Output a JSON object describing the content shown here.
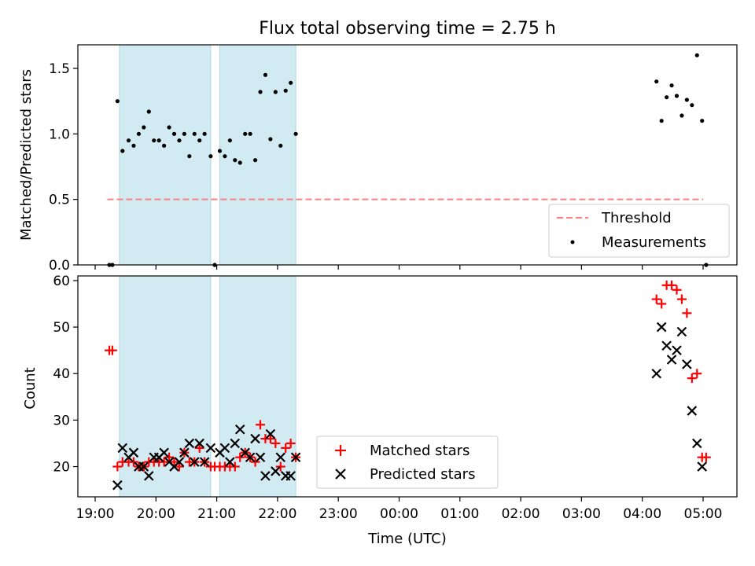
{
  "chart_data": [
    {
      "type": "scatter",
      "title": "Flux total observing time = 2.75 h",
      "xlabel": "",
      "ylabel": "Matched/Predicted stars",
      "ylim": [
        0,
        1.68
      ],
      "yticks": [
        "0.0",
        "0.5",
        "1.0",
        "1.5"
      ],
      "shaded_intervals": [
        [
          "19:24",
          "20:54"
        ],
        [
          "21:03",
          "22:18"
        ]
      ],
      "shade_color": "#add8e6",
      "threshold": {
        "name": "Threshold",
        "y": 0.5,
        "x_range": [
          "19:12",
          "05:00"
        ],
        "color": "#ff7f7f"
      },
      "legend": {
        "entries": [
          "Threshold",
          "Measurements"
        ],
        "loc": "lower right"
      },
      "series": [
        {
          "name": "Measurements",
          "marker": "dot",
          "color": "#000000",
          "points": [
            [
              "19:14",
              0.0
            ],
            [
              "19:17",
              0.0
            ],
            [
              "19:22",
              1.25
            ],
            [
              "19:27",
              0.87
            ],
            [
              "19:33",
              0.95
            ],
            [
              "19:38",
              0.91
            ],
            [
              "19:43",
              1.0
            ],
            [
              "19:48",
              1.05
            ],
            [
              "19:53",
              1.17
            ],
            [
              "19:58",
              0.95
            ],
            [
              "20:03",
              0.95
            ],
            [
              "20:08",
              0.91
            ],
            [
              "20:13",
              1.05
            ],
            [
              "20:18",
              1.0
            ],
            [
              "20:23",
              0.95
            ],
            [
              "20:28",
              1.0
            ],
            [
              "20:33",
              0.83
            ],
            [
              "20:38",
              1.0
            ],
            [
              "20:43",
              0.95
            ],
            [
              "20:48",
              1.0
            ],
            [
              "20:54",
              0.83
            ],
            [
              "20:58",
              0.0
            ],
            [
              "21:03",
              0.87
            ],
            [
              "21:08",
              0.83
            ],
            [
              "21:13",
              0.95
            ],
            [
              "21:18",
              0.8
            ],
            [
              "21:23",
              0.78
            ],
            [
              "21:28",
              1.0
            ],
            [
              "21:33",
              1.0
            ],
            [
              "21:38",
              0.8
            ],
            [
              "21:43",
              1.32
            ],
            [
              "21:48",
              1.45
            ],
            [
              "21:53",
              0.96
            ],
            [
              "21:58",
              1.32
            ],
            [
              "22:03",
              0.91
            ],
            [
              "22:08",
              1.33
            ],
            [
              "22:13",
              1.39
            ],
            [
              "22:18",
              1.0
            ],
            [
              "04:14",
              1.4
            ],
            [
              "04:19",
              1.1
            ],
            [
              "04:24",
              1.28
            ],
            [
              "04:29",
              1.37
            ],
            [
              "04:34",
              1.29
            ],
            [
              "04:39",
              1.14
            ],
            [
              "04:44",
              1.26
            ],
            [
              "04:49",
              1.22
            ],
            [
              "04:54",
              1.6
            ],
            [
              "04:59",
              1.1
            ],
            [
              "05:03",
              0.0
            ]
          ]
        }
      ]
    },
    {
      "type": "scatter",
      "title": "",
      "xlabel": "Time (UTC)",
      "ylabel": "Count",
      "ylim": [
        13.5,
        61
      ],
      "yticks": [
        "20",
        "30",
        "40",
        "50",
        "60"
      ],
      "xticks": [
        "19:00",
        "20:00",
        "21:00",
        "22:00",
        "23:00",
        "00:00",
        "01:00",
        "02:00",
        "03:00",
        "04:00",
        "05:00"
      ],
      "shaded_intervals": [
        [
          "19:24",
          "20:54"
        ],
        [
          "21:03",
          "22:18"
        ]
      ],
      "shade_color": "#add8e6",
      "legend": {
        "entries": [
          "Matched stars",
          "Predicted stars"
        ],
        "loc": "lower center"
      },
      "series": [
        {
          "name": "Matched stars",
          "marker": "plus",
          "color": "#ff0000",
          "points": [
            [
              "19:14",
              45
            ],
            [
              "19:17",
              45
            ],
            [
              "19:22",
              20
            ],
            [
              "19:27",
              21
            ],
            [
              "19:33",
              21
            ],
            [
              "19:38",
              21
            ],
            [
              "19:43",
              20
            ],
            [
              "19:48",
              20
            ],
            [
              "19:53",
              21
            ],
            [
              "19:58",
              21
            ],
            [
              "20:03",
              21
            ],
            [
              "20:08",
              21
            ],
            [
              "20:13",
              22
            ],
            [
              "20:18",
              21
            ],
            [
              "20:23",
              20
            ],
            [
              "20:28",
              23
            ],
            [
              "20:33",
              21
            ],
            [
              "20:38",
              21
            ],
            [
              "20:43",
              24
            ],
            [
              "20:48",
              21
            ],
            [
              "20:54",
              20
            ],
            [
              "20:58",
              20
            ],
            [
              "21:03",
              20
            ],
            [
              "21:08",
              20
            ],
            [
              "21:13",
              20
            ],
            [
              "21:18",
              20
            ],
            [
              "21:23",
              22
            ],
            [
              "21:28",
              23
            ],
            [
              "21:33",
              22
            ],
            [
              "21:38",
              21
            ],
            [
              "21:43",
              29
            ],
            [
              "21:48",
              26
            ],
            [
              "21:53",
              26
            ],
            [
              "21:58",
              25
            ],
            [
              "22:03",
              20
            ],
            [
              "22:08",
              24
            ],
            [
              "22:13",
              25
            ],
            [
              "22:18",
              22
            ],
            [
              "04:14",
              56
            ],
            [
              "04:19",
              55
            ],
            [
              "04:24",
              59
            ],
            [
              "04:29",
              59
            ],
            [
              "04:34",
              58
            ],
            [
              "04:39",
              56
            ],
            [
              "04:44",
              53
            ],
            [
              "04:49",
              39
            ],
            [
              "04:54",
              40
            ],
            [
              "04:59",
              22
            ],
            [
              "05:03",
              22
            ]
          ]
        },
        {
          "name": "Predicted stars",
          "marker": "x",
          "color": "#000000",
          "points": [
            [
              "19:22",
              16
            ],
            [
              "19:27",
              24
            ],
            [
              "19:33",
              22
            ],
            [
              "19:38",
              23
            ],
            [
              "19:43",
              20
            ],
            [
              "19:48",
              20
            ],
            [
              "19:53",
              18
            ],
            [
              "19:58",
              22
            ],
            [
              "20:03",
              22
            ],
            [
              "20:08",
              23
            ],
            [
              "20:13",
              21
            ],
            [
              "20:18",
              20
            ],
            [
              "20:23",
              21
            ],
            [
              "20:28",
              23
            ],
            [
              "20:33",
              25
            ],
            [
              "20:38",
              21
            ],
            [
              "20:43",
              25
            ],
            [
              "20:48",
              21
            ],
            [
              "20:54",
              24
            ],
            [
              "21:03",
              23
            ],
            [
              "21:08",
              24
            ],
            [
              "21:13",
              21
            ],
            [
              "21:18",
              25
            ],
            [
              "21:23",
              28
            ],
            [
              "21:28",
              23
            ],
            [
              "21:33",
              22
            ],
            [
              "21:38",
              26
            ],
            [
              "21:43",
              22
            ],
            [
              "21:48",
              18
            ],
            [
              "21:53",
              27
            ],
            [
              "21:58",
              19
            ],
            [
              "22:03",
              22
            ],
            [
              "22:08",
              18
            ],
            [
              "22:13",
              18
            ],
            [
              "22:18",
              22
            ],
            [
              "04:14",
              40
            ],
            [
              "04:19",
              50
            ],
            [
              "04:24",
              46
            ],
            [
              "04:29",
              43
            ],
            [
              "04:34",
              45
            ],
            [
              "04:39",
              49
            ],
            [
              "04:44",
              42
            ],
            [
              "04:49",
              32
            ],
            [
              "04:54",
              25
            ],
            [
              "04:59",
              20
            ]
          ]
        }
      ]
    }
  ]
}
